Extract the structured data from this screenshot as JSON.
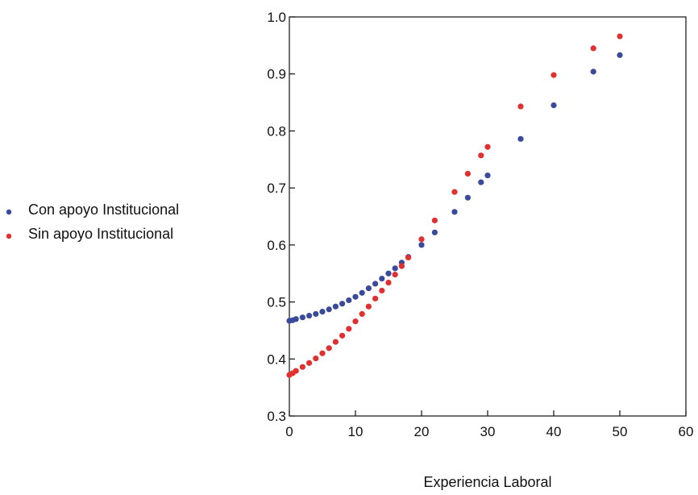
{
  "chart_data": {
    "type": "scatter",
    "title": "",
    "xlabel": "Experiencia Laboral",
    "ylabel": "",
    "xlim": [
      0,
      60
    ],
    "ylim": [
      0.3,
      1.0
    ],
    "xticks": [
      0,
      10,
      20,
      30,
      40,
      50,
      60
    ],
    "yticks": [
      0.3,
      0.4,
      0.5,
      0.6,
      0.7,
      0.8,
      0.9,
      1.0
    ],
    "xtick_labels": [
      "0",
      "10",
      "20",
      "30",
      "40",
      "50",
      "60"
    ],
    "ytick_labels": [
      "0.3",
      "0.4",
      "0.5",
      "0.6",
      "0.7",
      "0.8",
      "0.9",
      "1.0"
    ],
    "grid": false,
    "legend_position": "left",
    "series": [
      {
        "name": "Con apoyo Institucional",
        "color": "#3a4a9a",
        "x": [
          0,
          0.5,
          1,
          2,
          3,
          4,
          5,
          6,
          7,
          8,
          9,
          10,
          11,
          12,
          13,
          14,
          15,
          16,
          17,
          18,
          20,
          22,
          25,
          27,
          29,
          30,
          35,
          40,
          46,
          50
        ],
        "y": [
          0.467,
          0.468,
          0.47,
          0.473,
          0.476,
          0.479,
          0.483,
          0.487,
          0.492,
          0.497,
          0.503,
          0.509,
          0.516,
          0.524,
          0.532,
          0.541,
          0.55,
          0.559,
          0.569,
          0.579,
          0.6,
          0.622,
          0.658,
          0.683,
          0.71,
          0.722,
          0.786,
          0.845,
          0.904,
          0.933
        ]
      },
      {
        "name": "Sin apoyo Institucional",
        "color": "#e03030",
        "x": [
          0,
          0.5,
          1,
          2,
          3,
          4,
          5,
          6,
          7,
          8,
          9,
          10,
          11,
          12,
          13,
          14,
          15,
          16,
          17,
          18,
          20,
          22,
          25,
          27,
          29,
          30,
          35,
          40,
          46,
          50
        ],
        "y": [
          0.372,
          0.375,
          0.379,
          0.386,
          0.393,
          0.401,
          0.41,
          0.419,
          0.43,
          0.441,
          0.453,
          0.466,
          0.479,
          0.492,
          0.506,
          0.52,
          0.534,
          0.548,
          0.563,
          0.578,
          0.61,
          0.643,
          0.693,
          0.725,
          0.757,
          0.772,
          0.843,
          0.898,
          0.945,
          0.966
        ]
      }
    ]
  }
}
